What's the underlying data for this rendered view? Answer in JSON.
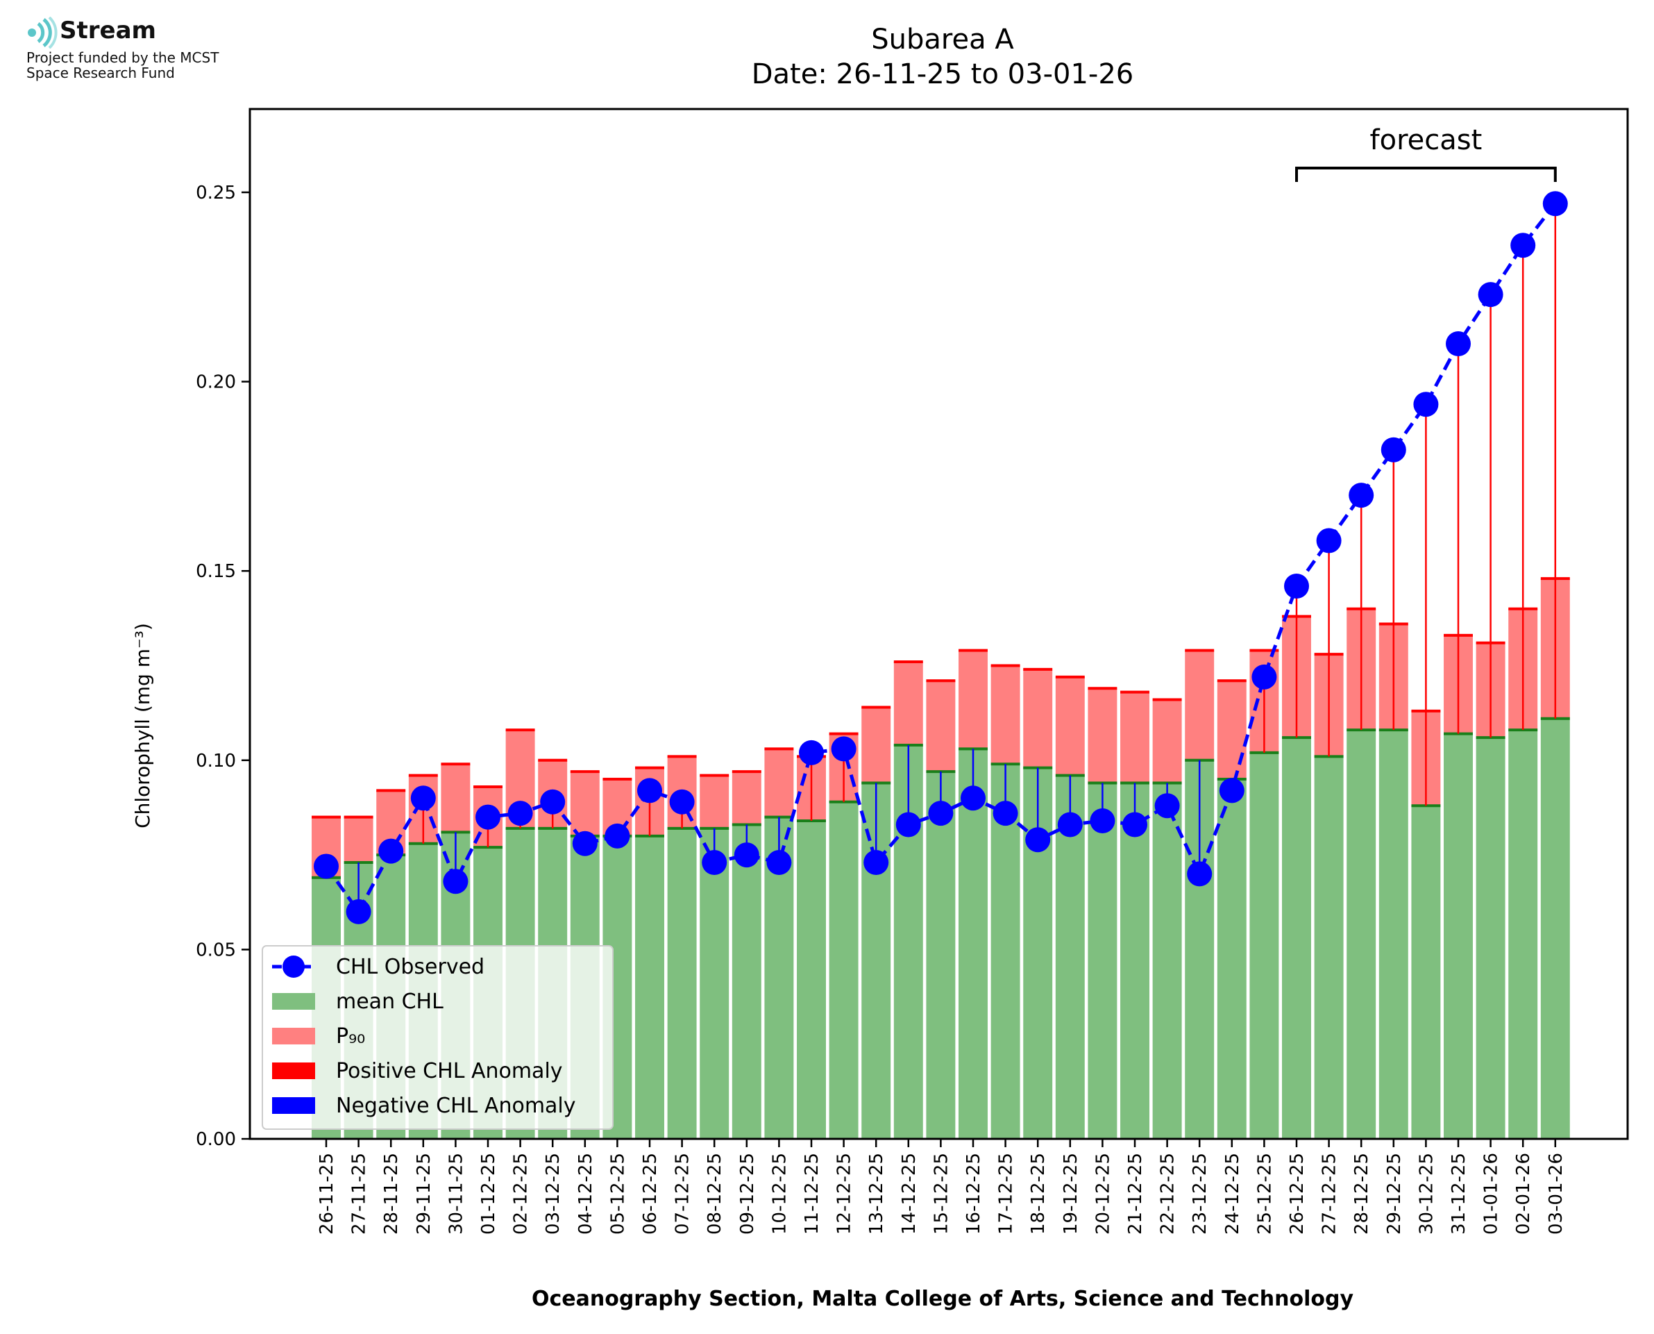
{
  "logo": {
    "name": "Stream",
    "line1": "Project funded by the MCST",
    "line2": "Space Research Fund",
    "icon": "stream-waves-icon"
  },
  "chart_data": {
    "type": "bar",
    "title": "Subarea A",
    "subtitle": "Date: 26-11-25 to 03-01-26",
    "xlabel": "Oceanography Section, Malta College of Arts, Science and Technology",
    "ylabel": "Chlorophyll (mg m⁻³)",
    "ylim": [
      0,
      0.272
    ],
    "yticks": [
      "0.00",
      "0.05",
      "0.10",
      "0.15",
      "0.20",
      "0.25"
    ],
    "ytick_values": [
      0,
      0.05,
      0.1,
      0.15,
      0.2,
      0.25
    ],
    "categories": [
      "26-11-25",
      "27-11-25",
      "28-11-25",
      "29-11-25",
      "30-11-25",
      "01-12-25",
      "02-12-25",
      "03-12-25",
      "04-12-25",
      "05-12-25",
      "06-12-25",
      "07-12-25",
      "08-12-25",
      "09-12-25",
      "10-12-25",
      "11-12-25",
      "12-12-25",
      "13-12-25",
      "14-12-25",
      "15-12-25",
      "16-12-25",
      "17-12-25",
      "18-12-25",
      "19-12-25",
      "20-12-25",
      "21-12-25",
      "22-12-25",
      "23-12-25",
      "24-12-25",
      "25-12-25",
      "26-12-25",
      "27-12-25",
      "28-12-25",
      "29-12-25",
      "30-12-25",
      "31-12-25",
      "01-01-26",
      "02-01-26",
      "03-01-26"
    ],
    "series": [
      {
        "name": "mean CHL",
        "color": "#7fbf7f",
        "values": [
          0.069,
          0.073,
          0.075,
          0.078,
          0.081,
          0.077,
          0.082,
          0.082,
          0.08,
          0.08,
          0.08,
          0.082,
          0.082,
          0.083,
          0.085,
          0.084,
          0.089,
          0.094,
          0.104,
          0.097,
          0.103,
          0.099,
          0.098,
          0.096,
          0.094,
          0.094,
          0.094,
          0.1,
          0.095,
          0.102,
          0.106,
          0.101,
          0.108,
          0.108,
          0.088,
          0.107,
          0.106,
          0.108,
          0.111
        ]
      },
      {
        "name": "P₉₀",
        "color": "#ff8080",
        "values": [
          0.085,
          0.085,
          0.092,
          0.096,
          0.099,
          0.093,
          0.108,
          0.1,
          0.097,
          0.095,
          0.098,
          0.101,
          0.096,
          0.097,
          0.103,
          0.101,
          0.107,
          0.114,
          0.126,
          0.121,
          0.129,
          0.125,
          0.124,
          0.122,
          0.119,
          0.118,
          0.116,
          0.129,
          0.121,
          0.129,
          0.138,
          0.128,
          0.14,
          0.136,
          0.113,
          0.133,
          0.131,
          0.14,
          0.148
        ]
      },
      {
        "name": "CHL Observed",
        "color": "#0000ff",
        "values": [
          0.072,
          0.06,
          0.076,
          0.09,
          0.068,
          0.085,
          0.086,
          0.089,
          0.078,
          0.08,
          0.092,
          0.089,
          0.073,
          0.075,
          0.073,
          0.102,
          0.103,
          0.073,
          0.083,
          0.086,
          0.09,
          0.086,
          0.079,
          0.083,
          0.084,
          0.083,
          0.088,
          0.07,
          0.092,
          0.122,
          0.146,
          0.158,
          0.17,
          0.182,
          0.194,
          0.21,
          0.223,
          0.236,
          0.247
        ]
      }
    ],
    "legend": {
      "position": "lower-left",
      "entries": [
        {
          "label": "CHL Observed",
          "color": "#0000ff",
          "kind": "line-marker"
        },
        {
          "label": "mean CHL",
          "color": "#7fbf7f",
          "kind": "patch"
        },
        {
          "label": "P₉₀",
          "color": "#ff8080",
          "kind": "patch"
        },
        {
          "label": "Positive CHL Anomaly",
          "color": "#ff0000",
          "kind": "patch"
        },
        {
          "label": "Negative CHL Anomaly",
          "color": "#0000ff",
          "kind": "patch"
        }
      ]
    },
    "annotation": {
      "label": "forecast",
      "from": "26-12-25",
      "to": "03-01-26"
    },
    "grid": false
  }
}
